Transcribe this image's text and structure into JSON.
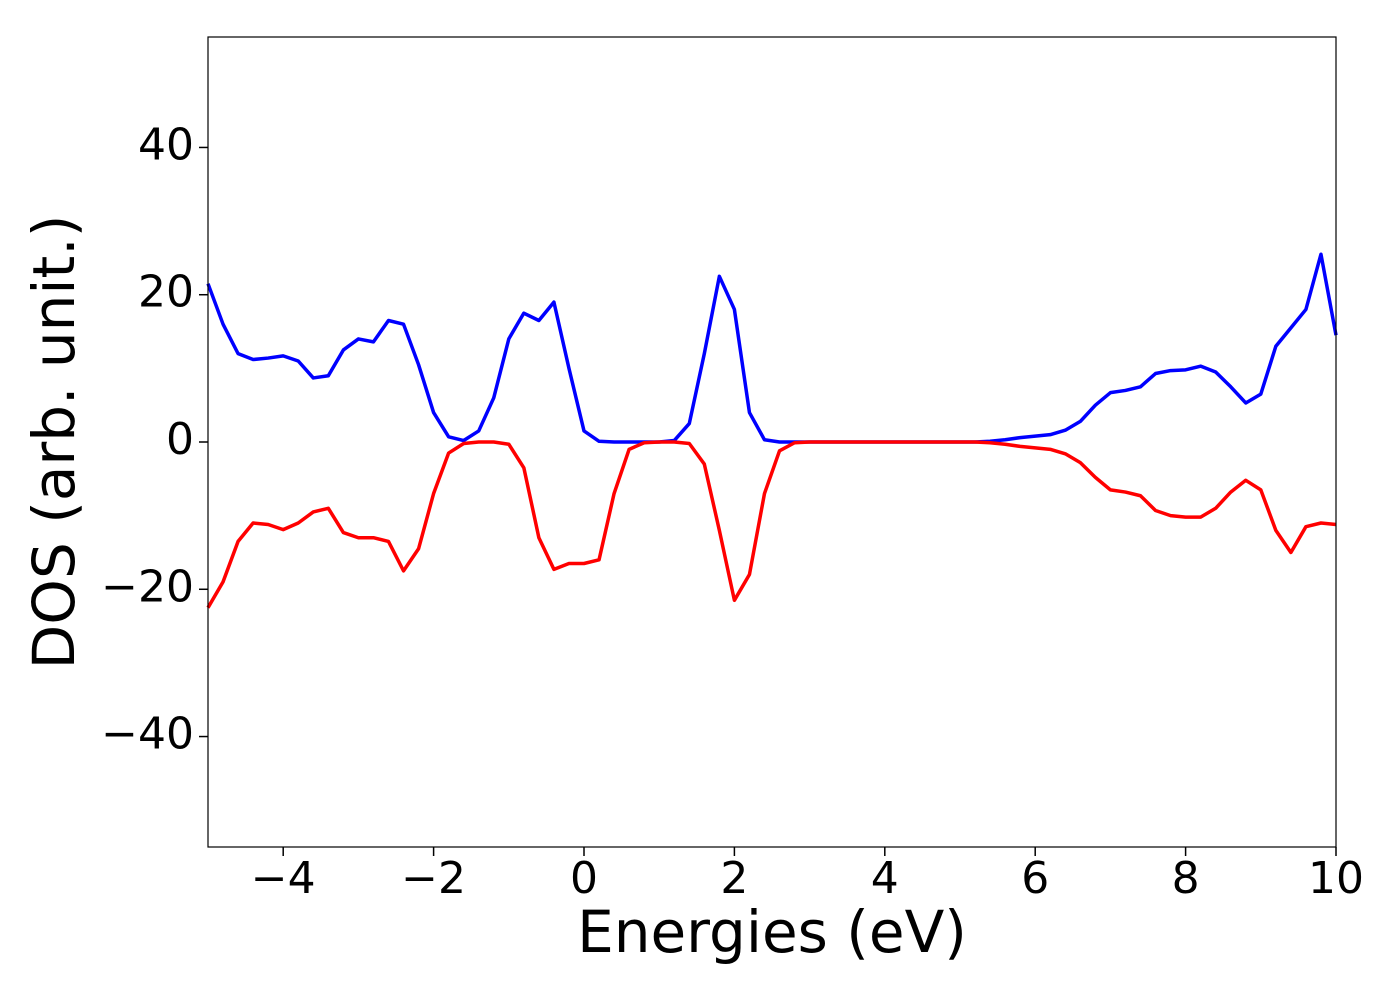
{
  "chart_data": {
    "type": "line",
    "xlabel": "Energies (eV)",
    "ylabel": "DOS (arb. unit.)",
    "x": [
      -5,
      -4.8,
      -4.6,
      -4.4,
      -4.2,
      -4,
      -3.8,
      -3.6,
      -3.4,
      -3.2,
      -3,
      -2.8,
      -2.6,
      -2.4,
      -2.2,
      -2,
      -1.8,
      -1.6,
      -1.4,
      -1.2,
      -1,
      -0.8,
      -0.6,
      -0.4,
      -0.2,
      0,
      0.2,
      0.4,
      0.6,
      0.8,
      1,
      1.2,
      1.4,
      1.6,
      1.8,
      2,
      2.2,
      2.4,
      2.6,
      2.8,
      3,
      3.2,
      3.4,
      3.6,
      3.8,
      4,
      4.2,
      4.4,
      4.6,
      4.8,
      5,
      5.2,
      5.4,
      5.6,
      5.8,
      6,
      6.2,
      6.4,
      6.6,
      6.8,
      7,
      7.2,
      7.4,
      7.6,
      7.8,
      8,
      8.2,
      8.4,
      8.6,
      8.8,
      9,
      9.2,
      9.4,
      9.6,
      9.8,
      10
    ],
    "series": [
      {
        "color": "#0000ff",
        "values": [
          21.5,
          16,
          12,
          11.2,
          11.4,
          11.7,
          11,
          8.7,
          9,
          12.5,
          14,
          13.6,
          16.5,
          16,
          10.5,
          4,
          0.7,
          0.2,
          1.5,
          6,
          14,
          17.5,
          16.5,
          19,
          10,
          1.5,
          0.1,
          0,
          0,
          0,
          0,
          0.2,
          2.5,
          12,
          22.5,
          18,
          4,
          0.3,
          0,
          0,
          0,
          0,
          0,
          0,
          0,
          0,
          0,
          0,
          0,
          0,
          0,
          0,
          0.1,
          0.3,
          0.6,
          0.8,
          1,
          1.6,
          2.8,
          5,
          6.7,
          7,
          7.5,
          9.3,
          9.7,
          9.8,
          10.3,
          9.5,
          7.5,
          5.3,
          6.5,
          13,
          15.5,
          18,
          25.5,
          14.5
        ]
      },
      {
        "color": "#ff0000",
        "values": [
          -22.5,
          -19,
          -13.5,
          -11,
          -11.2,
          -11.9,
          -11,
          -9.5,
          -9,
          -12.3,
          -13,
          -13,
          -13.5,
          -17.5,
          -14.5,
          -7,
          -1.5,
          -0.2,
          0,
          0,
          -0.3,
          -3.5,
          -13,
          -17.3,
          -16.5,
          -16.5,
          -16,
          -7,
          -1,
          -0.1,
          0,
          0,
          -0.2,
          -3,
          -12,
          -21.5,
          -18,
          -7,
          -1.2,
          -0.1,
          0,
          0,
          0,
          0,
          0,
          0,
          0,
          0,
          0,
          0,
          0,
          0,
          -0.1,
          -0.3,
          -0.6,
          -0.8,
          -1,
          -1.6,
          -2.8,
          -4.8,
          -6.5,
          -6.8,
          -7.3,
          -9.3,
          -10,
          -10.2,
          -10.2,
          -9,
          -6.8,
          -5.2,
          -6.5,
          -12,
          -15,
          -11.5,
          -11,
          -11.2
        ]
      }
    ],
    "xlim": [
      -5,
      10
    ],
    "xticks": [
      {
        "value": -4,
        "label": "−4"
      },
      {
        "value": -2,
        "label": "−2"
      },
      0,
      2,
      4,
      6,
      8,
      10
    ],
    "ylim": [
      -55,
      55
    ],
    "yticks": [
      {
        "value": -40,
        "label": "−40"
      },
      {
        "value": -20,
        "label": "−20"
      },
      0,
      20,
      40
    ]
  }
}
